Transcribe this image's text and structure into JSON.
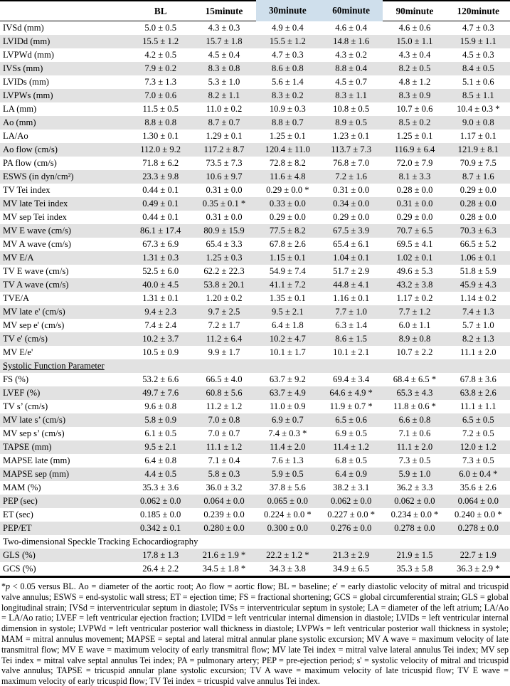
{
  "colors": {
    "header_highlight": "#cfdfec",
    "row_stripe": "#e2e2e2",
    "rule": "#000000"
  },
  "table": {
    "columns": [
      "BL",
      "15minute",
      "30minute",
      "60minute",
      "90minute",
      "120minute"
    ],
    "highlighted_columns": [
      "30minute",
      "60minute"
    ],
    "rows": [
      {
        "label": "IVSd (mm)",
        "values": [
          "5.0 ± 0.5",
          "4.3 ± 0.3",
          "4.9 ± 0.4",
          "4.6 ± 0.4",
          "4.6 ± 0.6",
          "4.7 ± 0.3"
        ]
      },
      {
        "label": "LVIDd (mm)",
        "values": [
          "15.5 ± 1.2",
          "15.7 ± 1.8",
          "15.5 ± 1.2",
          "14.8 ± 1.6",
          "15.0 ± 1.1",
          "15.9 ± 1.1"
        ]
      },
      {
        "label": "LVPWd (mm)",
        "values": [
          "4.2 ± 0.5",
          "4.5 ± 0.4",
          "4.7 ± 0.3",
          "4.3 ± 0.2",
          "4.3 ± 0.4",
          "4.5 ± 0.3"
        ]
      },
      {
        "label": "IVSs (mm)",
        "values": [
          "7.9 ± 0.2",
          "8.3 ± 0.8",
          "8.6 ± 0.8",
          "8.8 ± 0.4",
          "8.2 ± 0.5",
          "8.4 ± 0.5"
        ]
      },
      {
        "label": "LVIDs (mm)",
        "values": [
          "7.3 ± 1.3",
          "5.3 ± 1.0",
          "5.6 ± 1.4",
          "4.5 ± 0.7",
          "4.8 ± 1.2",
          "5.1 ± 0.6"
        ]
      },
      {
        "label": "LVPWs (mm)",
        "values": [
          "7.0 ± 0.6",
          "8.2 ± 1.1",
          "8.3 ± 0.2",
          "8.3 ± 1.1",
          "8.3 ± 0.9",
          "8.5 ± 1.1"
        ]
      },
      {
        "label": "LA (mm)",
        "values": [
          "11.5 ± 0.5",
          "11.0 ± 0.2",
          "10.9 ± 0.3",
          "10.8 ± 0.5",
          "10.7 ± 0.6",
          "10.4 ± 0.3 *"
        ]
      },
      {
        "label": "Ao (mm)",
        "values": [
          "8.8 ± 0.8",
          "8.7 ± 0.7",
          "8.8 ± 0.7",
          "8.9 ± 0.5",
          "8.5 ± 0.2",
          "9.0 ± 0.8"
        ]
      },
      {
        "label": "LA/Ao",
        "values": [
          "1.30 ± 0.1",
          "1.29 ± 0.1",
          "1.25 ± 0.1",
          "1.23 ± 0.1",
          "1.25 ± 0.1",
          "1.17 ± 0.1"
        ]
      },
      {
        "label": "Ao flow (cm/s)",
        "values": [
          "112.0 ± 9.2",
          "117.2 ± 8.7",
          "120.4 ± 11.0",
          "113.7 ± 7.3",
          "116.9 ± 6.4",
          "121.9 ± 8.1"
        ]
      },
      {
        "label": "PA flow (cm/s)",
        "values": [
          "71.8 ± 6.2",
          "73.5 ± 7.3",
          "72.8 ± 8.2",
          "76.8 ± 7.0",
          "72.0 ± 7.9",
          "70.9 ± 7.5"
        ]
      },
      {
        "label": "ESWS (in dyn/cm²)",
        "values": [
          "23.3 ± 9.8",
          "10.6 ± 9.7",
          "11.6 ± 4.8",
          "7.2 ± 1.6",
          "8.1 ± 3.3",
          "8.7 ± 1.6"
        ]
      },
      {
        "label": "TV Tei index",
        "values": [
          "0.44 ± 0.1",
          "0.31 ± 0.0",
          "0.29 ± 0.0 *",
          "0.31 ± 0.0",
          "0.28 ± 0.0",
          "0.29 ± 0.0"
        ]
      },
      {
        "label": "MV late Tei index",
        "values": [
          "0.49 ± 0.1",
          "0.35 ± 0.1 *",
          "0.33 ± 0.0",
          "0.34 ± 0.0",
          "0.31 ± 0.0",
          "0.28 ± 0.0"
        ]
      },
      {
        "label": "MV sep Tei index",
        "values": [
          "0.44 ± 0.1",
          "0.31 ± 0.0",
          "0.29 ± 0.0",
          "0.29 ± 0.0",
          "0.29 ± 0.0",
          "0.28 ± 0.0"
        ]
      },
      {
        "label": "MV E wave (cm/s)",
        "values": [
          "86.1 ± 17.4",
          "80.9 ± 15.9",
          "77.5 ± 8.2",
          "67.5 ± 3.9",
          "70.7 ± 6.5",
          "70.3 ± 6.3"
        ]
      },
      {
        "label": "MV A wave (cm/s)",
        "values": [
          "67.3 ± 6.9",
          "65.4 ± 3.3",
          "67.8 ± 2.6",
          "65.4 ± 6.1",
          "69.5 ± 4.1",
          "66.5 ± 5.2"
        ]
      },
      {
        "label": "MV E/A",
        "values": [
          "1.31 ± 0.3",
          "1.25 ± 0.3",
          "1.15 ± 0.1",
          "1.04 ± 0.1",
          "1.02 ± 0.1",
          "1.06 ± 0.1"
        ]
      },
      {
        "label": "TV E wave (cm/s)",
        "values": [
          "52.5 ± 6.0",
          "62.2 ± 22.3",
          "54.9 ± 7.4",
          "51.7 ± 2.9",
          "49.6 ± 5.3",
          "51.8 ± 5.9"
        ]
      },
      {
        "label": "TV A wave (cm/s)",
        "values": [
          "40.0 ± 4.5",
          "53.8 ± 20.1",
          "41.1 ± 7.2",
          "44.8 ± 4.1",
          "43.2 ± 3.8",
          "45.9 ± 4.3"
        ]
      },
      {
        "label": "TVE/A",
        "values": [
          "1.31 ± 0.1",
          "1.20 ± 0.2",
          "1.35 ± 0.1",
          "1.16 ± 0.1",
          "1.17 ± 0.2",
          "1.14 ± 0.2"
        ]
      },
      {
        "label": "MV late e' (cm/s)",
        "values": [
          "9.4 ± 2.3",
          "9.7 ± 2.5",
          "9.5 ± 2.1",
          "7.7 ± 1.0",
          "7.7 ± 1.2",
          "7.4 ± 1.3"
        ]
      },
      {
        "label": "MV sep e' (cm/s)",
        "values": [
          "7.4 ± 2.4",
          "7.2 ± 1.7",
          "6.4 ± 1.8",
          "6.3 ± 1.4",
          "6.0 ± 1.1",
          "5.7 ± 1.0"
        ]
      },
      {
        "label": "TV e' (cm/s)",
        "values": [
          "10.2 ± 3.7",
          "11.2 ± 6.4",
          "10.2 ± 4.7",
          "8.6 ± 1.5",
          "8.9 ± 0.8",
          "8.2 ± 1.3"
        ]
      },
      {
        "label": "MV E/e'",
        "values": [
          "10.5 ± 0.9",
          "9.9 ± 1.7",
          "10.1 ± 1.7",
          "10.1 ± 2.1",
          "10.7 ± 2.2",
          "11.1 ± 2.0"
        ]
      },
      {
        "label": "Systolic Function Parameter",
        "section": true,
        "underline": true
      },
      {
        "label": "FS (%)",
        "values": [
          "53.2 ± 6.6",
          "66.5 ± 4.0",
          "63.7 ± 9.2",
          "69.4 ± 3.4",
          "68.4 ± 6.5 *",
          "67.8 ± 3.6"
        ]
      },
      {
        "label": "LVEF (%)",
        "values": [
          "49.7 ± 7.6",
          "60.8 ± 5.6",
          "63.7 ± 4.9",
          "64.6 ± 4.9 *",
          "65.3 ± 4.3",
          "63.8 ± 2.6"
        ]
      },
      {
        "label": "TV s’ (cm/s)",
        "values": [
          "9.6 ± 0.8",
          "11.2 ± 1.2",
          "11.0 ± 0.9",
          "11.9 ± 0.7 *",
          "11.8 ± 0.6 *",
          "11.1 ± 1.1"
        ]
      },
      {
        "label": "MV late s’ (cm/s)",
        "values": [
          "5.8 ± 0.9",
          "7.0 ± 0.8",
          "6.9 ± 0.7",
          "6.5 ± 0.6",
          "6.6 ± 0.8",
          "6.5 ± 0.5"
        ]
      },
      {
        "label": "MV sep s’ (cm/s)",
        "values": [
          "6.1 ± 0.5",
          "7.0 ± 0.7",
          "7.4 ± 0.3 *",
          "6.9 ± 0.5",
          "7.1 ± 0.6",
          "7.2 ± 0.5"
        ]
      },
      {
        "label": "TAPSE (mm)",
        "values": [
          "9.5 ± 2.1",
          "11.1 ± 1.2",
          "11.4 ± 2.0",
          "11.4 ± 1.2",
          "11.1 ± 2.0",
          "12.0 ± 1.2"
        ]
      },
      {
        "label": "MAPSE late (mm)",
        "values": [
          "6.4 ± 0.8",
          "7.1 ± 0.4",
          "7.6 ± 1.3",
          "6.8 ± 0.5",
          "7.3 ± 0.5",
          "7.3 ± 0.5"
        ]
      },
      {
        "label": "MAPSE sep (mm)",
        "values": [
          "4.4 ± 0.5",
          "5.8 ± 0.3",
          "5.9 ± 0.5",
          "6.4 ± 0.9",
          "5.9 ± 1.0",
          "6.0 ± 0.4 *"
        ]
      },
      {
        "label": "MAM (%)",
        "values": [
          "35.3 ± 3.6",
          "36.0 ± 3.2",
          "37.8 ± 5.6",
          "38.2 ± 3.1",
          "36.2 ± 3.3",
          "35.6 ± 2.6"
        ]
      },
      {
        "label": "PEP (sec)",
        "values": [
          "0.062 ± 0.0",
          "0.064 ± 0.0",
          "0.065 ± 0.0",
          "0.062 ± 0.0",
          "0.062 ± 0.0",
          "0.064 ± 0.0"
        ]
      },
      {
        "label": "ET (sec)",
        "values": [
          "0.185 ± 0.0",
          "0.239 ± 0.0",
          "0.224 ± 0.0 *",
          "0.227 ± 0.0 *",
          "0.234 ± 0.0 *",
          "0.240 ± 0.0 *"
        ]
      },
      {
        "label": "PEP/ET",
        "values": [
          "0.342 ± 0.1",
          "0.280 ± 0.0",
          "0.300 ± 0.0",
          "0.276 ± 0.0",
          "0.278 ± 0.0",
          "0.278 ± 0.0"
        ]
      },
      {
        "label": "Two-dimensional Speckle Tracking Echocardiography",
        "section": true,
        "underline": false
      },
      {
        "label": "GLS (%)",
        "values": [
          "17.8 ± 1.3",
          "21.6 ± 1.9 *",
          "22.2 ± 1.2 *",
          "21.3 ± 2.9",
          "21.9 ± 1.5",
          "22.7 ± 1.9"
        ]
      },
      {
        "label": "GCS (%)",
        "values": [
          "26.4 ± 2.2",
          "34.5 ± 1.8 *",
          "34.3 ± 3.8",
          "34.9 ± 6.5",
          "35.3 ± 5.8",
          "36.3 ± 2.9 *"
        ]
      }
    ]
  },
  "footnote": {
    "star": "*",
    "p": "p",
    "rest": " < 0.05 versus BL. Ao = diameter of the aortic root; Ao flow = aortic flow; BL = baseline; e' = early diastolic velocity of mitral and tricuspid valve annulus; ESWS = end-systolic wall stress; ET = ejection time; FS = fractional shortening; GCS = global circumferential strain; GLS = global longitudinal strain; IVSd = interventricular septum in diastole; IVSs = interventricular septum in systole; LA = diameter of the left atrium; LA/Ao = LA/Ao ratio; LVEF = left ventricular ejection fraction; LVIDd = left ventricular internal dimension in diastole; LVIDs = left ventricular internal dimension in systole; LVPWd = left ventricular posterior wall thickness in diastole; LVPWs = left ventricular posterior wall thickness in systole; MAM = mitral annulus movement; MAPSE = septal and lateral mitral annular plane systolic excursion; MV A wave = maximum velocity of late transmitral flow; MV E wave = maximum velocity of early transmitral flow; MV late Tei index = mitral valve lateral annulus Tei index; MV sep Tei index = mitral valve septal annulus Tei index; PA = pulmonary artery; PEP = pre-ejection period; s' = systolic velocity of mitral and tricuspid valve annulus; TAPSE = tricuspid annular plane systolic excursion; TV A wave = maximum velocity of late tricuspid flow; TV E wave = maximum velocity of early tricuspid flow; TV Tei index = tricuspid valve annulus Tei index."
  }
}
